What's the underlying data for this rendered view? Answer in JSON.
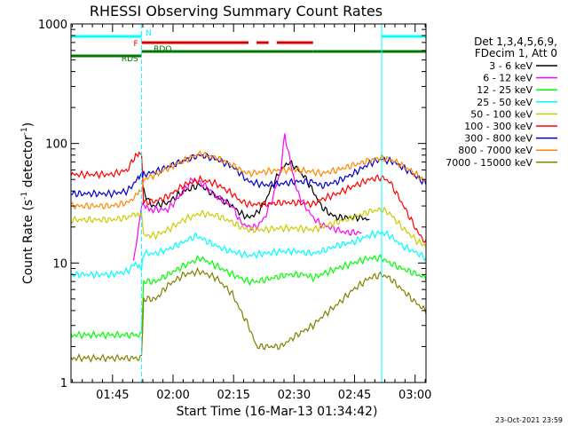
{
  "chart_data": {
    "type": "line",
    "title": "RHESSI Observing Summary Count Rates",
    "xlabel": "Start Time (16-Mar-13 01:34:42)",
    "ylabel_main": "Count Rate (s",
    "ylabel_sup1": "-1",
    "ylabel_mid": " detector",
    "ylabel_sup2": "-1",
    "ylabel_end": ")",
    "yscale": "log",
    "ylim": [
      1,
      1000
    ],
    "xlim_minutes": [
      0,
      88
    ],
    "xticks": [
      {
        "label": "01:45",
        "t": 10.3
      },
      {
        "label": "02:00",
        "t": 25.3
      },
      {
        "label": "02:15",
        "t": 40.3
      },
      {
        "label": "02:30",
        "t": 55.3
      },
      {
        "label": "02:45",
        "t": 70.3
      },
      {
        "label": "03:00",
        "t": 85.3
      }
    ],
    "yticks": [
      {
        "label": "1",
        "v": 1
      },
      {
        "label": "10",
        "v": 10
      },
      {
        "label": "100",
        "v": 100
      },
      {
        "label": "1000",
        "v": 1000
      }
    ],
    "legend_header": [
      "Det 1,3,4,5,6,9,",
      "FDecim 1, Att 0"
    ],
    "footer_date": "23-Oct-2021 23:59",
    "flags": {
      "N": {
        "label": "N",
        "color": "#00ffff",
        "segments": [
          [
            0,
            17.5
          ],
          [
            77,
            93
          ]
        ]
      },
      "F": {
        "label": "F",
        "color": "#dd0000",
        "segments": [
          [
            17.5,
            44
          ],
          [
            46,
            49
          ],
          [
            51,
            60
          ]
        ]
      },
      "RDO": {
        "label": "RDO",
        "color": "#007700",
        "segments": [
          [
            17.5,
            44
          ],
          [
            44,
            60
          ],
          [
            60,
            88
          ]
        ]
      },
      "RDS": {
        "label": "RDS",
        "color": "#007700",
        "segments": [
          [
            0,
            17.5
          ]
        ]
      }
    },
    "night_markers": [
      0,
      17.5,
      77,
      93
    ],
    "series": [
      {
        "name": "3 - 6 keV",
        "color": "#000000",
        "points": [
          [
            18,
            40
          ],
          [
            20,
            30
          ],
          [
            24,
            32
          ],
          [
            28,
            40
          ],
          [
            32,
            45
          ],
          [
            36,
            36
          ],
          [
            40,
            30
          ],
          [
            42,
            26
          ],
          [
            44,
            24
          ],
          [
            46,
            26
          ],
          [
            48,
            32
          ],
          [
            50,
            45
          ],
          [
            52,
            60
          ],
          [
            54,
            70
          ],
          [
            56,
            62
          ],
          [
            58,
            52
          ],
          [
            60,
            40
          ],
          [
            62,
            30
          ],
          [
            64,
            26
          ],
          [
            66,
            24
          ],
          [
            68,
            24
          ],
          [
            70,
            24
          ],
          [
            72,
            24
          ],
          [
            74,
            23
          ]
        ]
      },
      {
        "name": "6 - 12 keV",
        "color": "#ff00ff",
        "points": [
          [
            15.5,
            10
          ],
          [
            17.5,
            30
          ],
          [
            20,
            28
          ],
          [
            24,
            28
          ],
          [
            28,
            40
          ],
          [
            30,
            50
          ],
          [
            33,
            45
          ],
          [
            36,
            36
          ],
          [
            40,
            30
          ],
          [
            42,
            22
          ],
          [
            44,
            20
          ],
          [
            46,
            20
          ],
          [
            48,
            24
          ],
          [
            50,
            35
          ],
          [
            52,
            60
          ],
          [
            53,
            120
          ],
          [
            54,
            80
          ],
          [
            56,
            40
          ],
          [
            58,
            30
          ],
          [
            60,
            24
          ],
          [
            62,
            21
          ],
          [
            64,
            20
          ],
          [
            66,
            19
          ],
          [
            68,
            18
          ],
          [
            70,
            18
          ],
          [
            72,
            18
          ]
        ]
      },
      {
        "name": "12 - 25 keV",
        "color": "#00ff00",
        "points": [
          [
            0,
            2.5
          ],
          [
            17.5,
            2.5
          ],
          [
            18,
            7
          ],
          [
            21,
            7
          ],
          [
            24,
            8
          ],
          [
            28,
            9.5
          ],
          [
            32,
            11
          ],
          [
            36,
            9.5
          ],
          [
            40,
            8
          ],
          [
            42,
            7.5
          ],
          [
            44,
            7
          ],
          [
            46,
            7
          ],
          [
            50,
            7.5
          ],
          [
            54,
            8
          ],
          [
            58,
            8
          ],
          [
            60,
            7.5
          ],
          [
            62,
            8
          ],
          [
            66,
            9
          ],
          [
            70,
            10
          ],
          [
            74,
            11
          ],
          [
            77,
            11
          ],
          [
            79,
            10
          ],
          [
            82,
            9
          ],
          [
            86,
            8
          ],
          [
            90,
            7
          ],
          [
            93,
            6
          ]
        ]
      },
      {
        "name": "25 - 50 keV",
        "color": "#00ffff",
        "points": [
          [
            0,
            8
          ],
          [
            10,
            8
          ],
          [
            14,
            8.5
          ],
          [
            16,
            10
          ],
          [
            17.5,
            9
          ],
          [
            18,
            12
          ],
          [
            21,
            12
          ],
          [
            24,
            13
          ],
          [
            28,
            15
          ],
          [
            31,
            17
          ],
          [
            34,
            15
          ],
          [
            38,
            13
          ],
          [
            42,
            12
          ],
          [
            44,
            11.5
          ],
          [
            48,
            12
          ],
          [
            52,
            12.5
          ],
          [
            56,
            12.5
          ],
          [
            60,
            12
          ],
          [
            62,
            12.5
          ],
          [
            66,
            14
          ],
          [
            70,
            15
          ],
          [
            74,
            17
          ],
          [
            77,
            18
          ],
          [
            79,
            17
          ],
          [
            82,
            14
          ],
          [
            86,
            12
          ],
          [
            90,
            10
          ],
          [
            93,
            9
          ]
        ]
      },
      {
        "name": "50 - 100 keV",
        "color": "#cccc00",
        "points": [
          [
            0,
            23
          ],
          [
            10,
            23
          ],
          [
            14,
            24
          ],
          [
            16,
            26
          ],
          [
            17.5,
            26
          ],
          [
            18,
            17
          ],
          [
            21,
            17
          ],
          [
            24,
            19
          ],
          [
            28,
            23
          ],
          [
            32,
            26
          ],
          [
            36,
            25
          ],
          [
            40,
            22
          ],
          [
            42,
            20
          ],
          [
            44,
            19
          ],
          [
            48,
            19
          ],
          [
            52,
            19.5
          ],
          [
            56,
            19.5
          ],
          [
            60,
            19
          ],
          [
            62,
            20
          ],
          [
            66,
            22
          ],
          [
            70,
            24
          ],
          [
            74,
            27
          ],
          [
            77,
            28
          ],
          [
            79,
            26
          ],
          [
            82,
            20
          ],
          [
            86,
            15
          ],
          [
            90,
            13
          ],
          [
            93,
            12
          ]
        ]
      },
      {
        "name": "100 - 300 keV",
        "color": "#ff0000",
        "points": [
          [
            0,
            55
          ],
          [
            10,
            55
          ],
          [
            14,
            60
          ],
          [
            16,
            80
          ],
          [
            17.5,
            85
          ],
          [
            18,
            32
          ],
          [
            21,
            33
          ],
          [
            24,
            36
          ],
          [
            28,
            45
          ],
          [
            32,
            50
          ],
          [
            36,
            46
          ],
          [
            40,
            38
          ],
          [
            42,
            33
          ],
          [
            44,
            31
          ],
          [
            48,
            31
          ],
          [
            52,
            32
          ],
          [
            56,
            32
          ],
          [
            60,
            31
          ],
          [
            62,
            34
          ],
          [
            66,
            38
          ],
          [
            70,
            44
          ],
          [
            74,
            50
          ],
          [
            77,
            52
          ],
          [
            79,
            48
          ],
          [
            82,
            32
          ],
          [
            86,
            18
          ],
          [
            90,
            12
          ],
          [
            93,
            8
          ]
        ]
      },
      {
        "name": "300 - 800 keV",
        "color": "#0000cc",
        "points": [
          [
            0,
            38
          ],
          [
            10,
            38
          ],
          [
            14,
            40
          ],
          [
            16,
            48
          ],
          [
            17.5,
            55
          ],
          [
            18,
            55
          ],
          [
            21,
            58
          ],
          [
            24,
            64
          ],
          [
            28,
            72
          ],
          [
            32,
            80
          ],
          [
            36,
            74
          ],
          [
            40,
            64
          ],
          [
            42,
            56
          ],
          [
            44,
            48
          ],
          [
            48,
            45
          ],
          [
            52,
            46
          ],
          [
            56,
            48
          ],
          [
            60,
            48
          ],
          [
            62,
            44
          ],
          [
            66,
            48
          ],
          [
            70,
            56
          ],
          [
            74,
            68
          ],
          [
            77,
            74
          ],
          [
            80,
            70
          ],
          [
            84,
            58
          ],
          [
            88,
            46
          ],
          [
            91,
            36
          ],
          [
            93,
            30
          ]
        ]
      },
      {
        "name": "800 - 7000 keV",
        "color": "#ff8800",
        "points": [
          [
            0,
            30
          ],
          [
            10,
            30
          ],
          [
            14,
            32
          ],
          [
            16,
            36
          ],
          [
            17.5,
            40
          ],
          [
            18,
            50
          ],
          [
            21,
            55
          ],
          [
            24,
            62
          ],
          [
            28,
            72
          ],
          [
            32,
            82
          ],
          [
            36,
            76
          ],
          [
            40,
            66
          ],
          [
            42,
            60
          ],
          [
            44,
            56
          ],
          [
            48,
            58
          ],
          [
            52,
            60
          ],
          [
            56,
            60
          ],
          [
            60,
            58
          ],
          [
            62,
            56
          ],
          [
            66,
            60
          ],
          [
            70,
            66
          ],
          [
            74,
            72
          ],
          [
            77,
            76
          ],
          [
            80,
            72
          ],
          [
            84,
            60
          ],
          [
            88,
            48
          ],
          [
            91,
            38
          ],
          [
            93,
            34
          ]
        ]
      },
      {
        "name": "7000 - 15000 keV",
        "color": "#808000",
        "points": [
          [
            0,
            1.6
          ],
          [
            17.5,
            1.6
          ],
          [
            18,
            5
          ],
          [
            21,
            5
          ],
          [
            24,
            6.5
          ],
          [
            28,
            8
          ],
          [
            32,
            8.5
          ],
          [
            36,
            7.5
          ],
          [
            40,
            5.5
          ],
          [
            42,
            4
          ],
          [
            44,
            3
          ],
          [
            46,
            2
          ],
          [
            52,
            2
          ],
          [
            56,
            2.5
          ],
          [
            60,
            3
          ],
          [
            62,
            3.5
          ],
          [
            66,
            4.5
          ],
          [
            70,
            6
          ],
          [
            74,
            7.5
          ],
          [
            77,
            8
          ],
          [
            79,
            7.5
          ],
          [
            82,
            6
          ],
          [
            86,
            4.5
          ],
          [
            90,
            3.5
          ],
          [
            93,
            2.5
          ]
        ]
      }
    ]
  }
}
